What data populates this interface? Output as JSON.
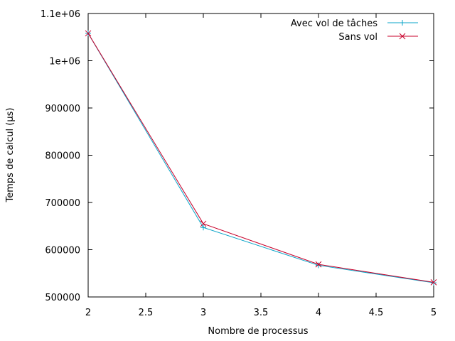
{
  "chart_data": {
    "type": "line",
    "xlabel": "Nombre de processus",
    "ylabel": "Temps de calcul (µs)",
    "xlim": [
      2,
      5
    ],
    "ylim": [
      500000,
      1100000
    ],
    "xticks": [
      "2",
      "2.5",
      "3",
      "3.5",
      "4",
      "4.5",
      "5"
    ],
    "yticks": [
      "500000",
      "600000",
      "700000",
      "800000",
      "900000",
      "1e+06",
      "1.1e+06"
    ],
    "grid": false,
    "legend_position": "top-right",
    "series": [
      {
        "name": "Avec vol de tâches",
        "color": "#0aa4c8",
        "marker": "plus",
        "x": [
          2,
          3,
          4,
          5
        ],
        "y": [
          1058000,
          647000,
          567000,
          530000
        ]
      },
      {
        "name": "Sans vol",
        "color": "#c8002a",
        "marker": "cross",
        "x": [
          2,
          3,
          4,
          5
        ],
        "y": [
          1058000,
          655000,
          569000,
          531000
        ]
      }
    ]
  }
}
